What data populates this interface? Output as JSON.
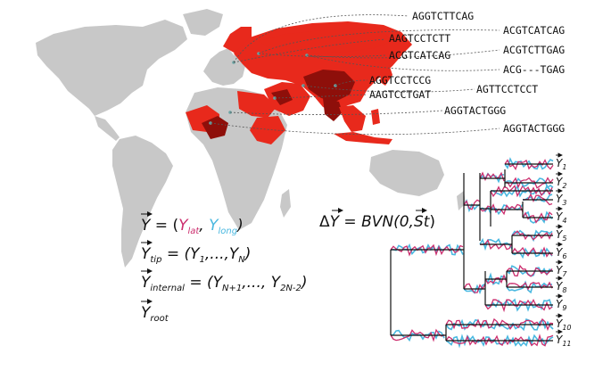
{
  "sequences": [
    "AGGTCTTCAG",
    "ACGTCATCAG",
    "AAGTCCTCTT",
    "ACGTCTTGAG",
    "ACGTCATCAG",
    "ACG---TGAG",
    "AGGTCCTCCG",
    "AGTTCCTCCT",
    "AAGTCCTGAT",
    "AGGTACTGGG",
    "AGGTACTGGG"
  ],
  "equations": {
    "y_def": {
      "lhs": "Y",
      "eq": " = (",
      "lat": "Y",
      "lat_sub": "lat",
      "comma": ", ",
      "long": "Y",
      "long_sub": "long",
      "close": ")"
    },
    "y_tip": {
      "lhs": "Y",
      "lhs_sub": "tip",
      "rhs": " = (Y",
      "r1sub": "1",
      "mid": ",...,Y",
      "r2sub": "N",
      "close": ")"
    },
    "y_internal": {
      "lhs": "Y",
      "lhs_sub": "internal",
      "rhs": " = (Y",
      "r1sub": "N+1",
      "mid": ",..., Y",
      "r2sub": "2N-2",
      "close": ")"
    },
    "y_root": {
      "lhs": "Y",
      "lhs_sub": "root"
    },
    "delta": {
      "delta": "Δ",
      "y": "Y",
      "mid": " = BVN(0,",
      "s": "S",
      "t": "t",
      "close": ")"
    }
  },
  "tips": [
    {
      "label": "Y",
      "sub": "1"
    },
    {
      "label": "Y",
      "sub": "2"
    },
    {
      "label": "Y",
      "sub": "3"
    },
    {
      "label": "Y",
      "sub": "4"
    },
    {
      "label": "Y",
      "sub": "5"
    },
    {
      "label": "Y",
      "sub": "6"
    },
    {
      "label": "Y",
      "sub": "7"
    },
    {
      "label": "Y",
      "sub": "8"
    },
    {
      "label": "Y",
      "sub": "9"
    },
    {
      "label": "Y",
      "sub": "10"
    },
    {
      "label": "Y",
      "sub": "11"
    }
  ],
  "colors": {
    "land": "#c8c8c8",
    "red_light": "#e8291c",
    "red_dark": "#8e0f0a",
    "lat_trace": "#cc2e6e",
    "long_trace": "#4ab8e0",
    "tree": "#111111"
  }
}
